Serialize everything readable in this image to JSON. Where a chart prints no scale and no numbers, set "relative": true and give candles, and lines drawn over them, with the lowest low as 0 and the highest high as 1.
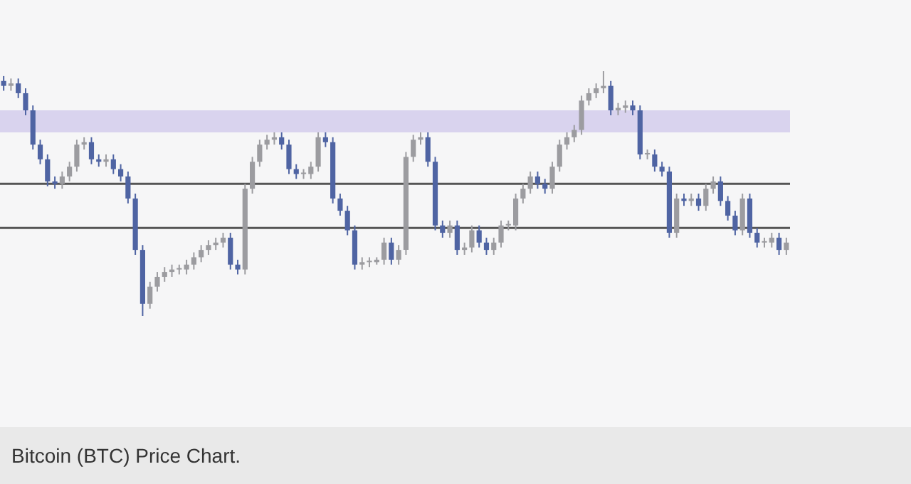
{
  "chart_data": {
    "type": "candlestick",
    "relative": true,
    "categories": [
      null,
      null,
      null,
      null,
      null,
      null,
      null,
      null,
      null,
      null,
      null,
      null,
      null,
      null,
      null,
      null,
      null,
      null,
      null,
      null,
      null,
      null,
      null,
      null,
      null,
      null,
      null,
      null,
      null,
      null,
      null,
      null,
      null,
      null,
      null,
      null,
      null,
      null,
      null,
      null,
      null,
      null,
      null,
      null,
      null,
      null,
      null,
      null,
      null,
      null,
      null,
      null,
      null,
      null,
      null,
      null,
      null,
      null,
      null,
      null,
      null,
      null,
      null,
      null,
      null,
      null,
      null,
      null,
      null,
      null,
      null,
      null,
      null,
      null,
      null,
      null,
      null,
      null,
      null,
      null,
      null,
      null,
      null,
      null,
      null,
      null,
      null,
      null,
      null,
      null,
      null,
      null,
      null,
      null,
      null,
      null,
      null,
      null,
      null,
      null,
      null,
      null,
      null,
      null,
      null,
      null,
      null,
      null
    ],
    "ohlc": [
      [
        0.96,
        0.98,
        0.92,
        0.94
      ],
      [
        0.94,
        0.97,
        0.92,
        0.95
      ],
      [
        0.95,
        0.97,
        0.89,
        0.91
      ],
      [
        0.91,
        0.93,
        0.82,
        0.84
      ],
      [
        0.84,
        0.86,
        0.68,
        0.7
      ],
      [
        0.7,
        0.72,
        0.62,
        0.64
      ],
      [
        0.64,
        0.66,
        0.53,
        0.55
      ],
      [
        0.55,
        0.57,
        0.52,
        0.54
      ],
      [
        0.54,
        0.59,
        0.52,
        0.57
      ],
      [
        0.57,
        0.63,
        0.55,
        0.61
      ],
      [
        0.61,
        0.72,
        0.59,
        0.7
      ],
      [
        0.7,
        0.73,
        0.68,
        0.71
      ],
      [
        0.71,
        0.73,
        0.62,
        0.64
      ],
      [
        0.64,
        0.66,
        0.61,
        0.63
      ],
      [
        0.63,
        0.66,
        0.61,
        0.64
      ],
      [
        0.64,
        0.66,
        0.58,
        0.6
      ],
      [
        0.6,
        0.62,
        0.55,
        0.57
      ],
      [
        0.57,
        0.59,
        0.46,
        0.48
      ],
      [
        0.48,
        0.5,
        0.25,
        0.27
      ],
      [
        0.27,
        0.29,
        0,
        0.05
      ],
      [
        0.05,
        0.14,
        0.03,
        0.12
      ],
      [
        0.12,
        0.18,
        0.1,
        0.16
      ],
      [
        0.16,
        0.2,
        0.14,
        0.18
      ],
      [
        0.18,
        0.21,
        0.16,
        0.19
      ],
      [
        0.19,
        0.21,
        0.17,
        0.19
      ],
      [
        0.19,
        0.23,
        0.17,
        0.21
      ],
      [
        0.21,
        0.26,
        0.19,
        0.24
      ],
      [
        0.24,
        0.29,
        0.22,
        0.27
      ],
      [
        0.27,
        0.31,
        0.25,
        0.29
      ],
      [
        0.29,
        0.32,
        0.27,
        0.3
      ],
      [
        0.3,
        0.34,
        0.28,
        0.32
      ],
      [
        0.32,
        0.34,
        0.19,
        0.21
      ],
      [
        0.21,
        0.23,
        0.17,
        0.19
      ],
      [
        0.19,
        0.54,
        0.17,
        0.52
      ],
      [
        0.52,
        0.65,
        0.5,
        0.63
      ],
      [
        0.63,
        0.72,
        0.61,
        0.7
      ],
      [
        0.7,
        0.74,
        0.68,
        0.72
      ],
      [
        0.72,
        0.75,
        0.7,
        0.73
      ],
      [
        0.73,
        0.75,
        0.68,
        0.7
      ],
      [
        0.7,
        0.72,
        0.58,
        0.6
      ],
      [
        0.6,
        0.62,
        0.56,
        0.58
      ],
      [
        0.58,
        0.6,
        0.56,
        0.58
      ],
      [
        0.58,
        0.63,
        0.56,
        0.61
      ],
      [
        0.61,
        0.75,
        0.59,
        0.73
      ],
      [
        0.73,
        0.75,
        0.69,
        0.71
      ],
      [
        0.71,
        0.73,
        0.46,
        0.48
      ],
      [
        0.48,
        0.5,
        0.41,
        0.43
      ],
      [
        0.43,
        0.45,
        0.33,
        0.35
      ],
      [
        0.35,
        0.37,
        0.19,
        0.21
      ],
      [
        0.21,
        0.24,
        0.19,
        0.22
      ],
      [
        0.22,
        0.24,
        0.2,
        0.22
      ],
      [
        0.22,
        0.24,
        0.21,
        0.23
      ],
      [
        0.23,
        0.32,
        0.21,
        0.3
      ],
      [
        0.3,
        0.32,
        0.21,
        0.23
      ],
      [
        0.23,
        0.29,
        0.21,
        0.27
      ],
      [
        0.27,
        0.67,
        0.25,
        0.65
      ],
      [
        0.65,
        0.74,
        0.63,
        0.72
      ],
      [
        0.72,
        0.75,
        0.7,
        0.73
      ],
      [
        0.73,
        0.75,
        0.61,
        0.63
      ],
      [
        0.63,
        0.65,
        0.35,
        0.37
      ],
      [
        0.37,
        0.39,
        0.32,
        0.34
      ],
      [
        0.34,
        0.39,
        0.32,
        0.37
      ],
      [
        0.37,
        0.39,
        0.25,
        0.27
      ],
      [
        0.27,
        0.3,
        0.25,
        0.28
      ],
      [
        0.28,
        0.37,
        0.26,
        0.35
      ],
      [
        0.35,
        0.37,
        0.28,
        0.3
      ],
      [
        0.3,
        0.32,
        0.25,
        0.27
      ],
      [
        0.27,
        0.32,
        0.25,
        0.3
      ],
      [
        0.3,
        0.39,
        0.28,
        0.37
      ],
      [
        0.37,
        0.39,
        0.35,
        0.37
      ],
      [
        0.37,
        0.5,
        0.35,
        0.48
      ],
      [
        0.48,
        0.54,
        0.46,
        0.52
      ],
      [
        0.52,
        0.59,
        0.5,
        0.57
      ],
      [
        0.57,
        0.59,
        0.52,
        0.54
      ],
      [
        0.54,
        0.56,
        0.5,
        0.52
      ],
      [
        0.52,
        0.63,
        0.5,
        0.61
      ],
      [
        0.61,
        0.72,
        0.59,
        0.7
      ],
      [
        0.7,
        0.75,
        0.68,
        0.73
      ],
      [
        0.73,
        0.78,
        0.71,
        0.76
      ],
      [
        0.76,
        0.9,
        0.74,
        0.88
      ],
      [
        0.88,
        0.93,
        0.86,
        0.91
      ],
      [
        0.91,
        0.95,
        0.89,
        0.93
      ],
      [
        0.93,
        1,
        0.91,
        0.94
      ],
      [
        0.94,
        0.96,
        0.82,
        0.84
      ],
      [
        0.84,
        0.87,
        0.82,
        0.85
      ],
      [
        0.85,
        0.88,
        0.83,
        0.86
      ],
      [
        0.86,
        0.88,
        0.82,
        0.84
      ],
      [
        0.84,
        0.86,
        0.64,
        0.66
      ],
      [
        0.66,
        0.68,
        0.64,
        0.66
      ],
      [
        0.66,
        0.68,
        0.59,
        0.61
      ],
      [
        0.61,
        0.63,
        0.57,
        0.59
      ],
      [
        0.59,
        0.61,
        0.32,
        0.34
      ],
      [
        0.34,
        0.5,
        0.32,
        0.48
      ],
      [
        0.48,
        0.5,
        0.45,
        0.47
      ],
      [
        0.47,
        0.5,
        0.45,
        0.48
      ],
      [
        0.48,
        0.5,
        0.43,
        0.45
      ],
      [
        0.45,
        0.54,
        0.43,
        0.52
      ],
      [
        0.52,
        0.57,
        0.5,
        0.55
      ],
      [
        0.55,
        0.57,
        0.45,
        0.47
      ],
      [
        0.47,
        0.49,
        0.39,
        0.41
      ],
      [
        0.41,
        0.43,
        0.33,
        0.35
      ],
      [
        0.35,
        0.5,
        0.33,
        0.48
      ],
      [
        0.48,
        0.5,
        0.32,
        0.34
      ],
      [
        0.34,
        0.36,
        0.28,
        0.3
      ],
      [
        0.3,
        0.32,
        0.28,
        0.3
      ],
      [
        0.3,
        0.34,
        0.28,
        0.32
      ],
      [
        0.32,
        0.34,
        0.25,
        0.27
      ],
      [
        0.27,
        0.32,
        0.25,
        0.3
      ]
    ],
    "bands": [
      {
        "axis": "y",
        "from": 0.75,
        "to": 0.84,
        "color": "#d9d3ee"
      }
    ],
    "ref_lines": [
      {
        "axis": "y",
        "value": 0.54,
        "color": "#555555"
      },
      {
        "axis": "y",
        "value": 0.36,
        "color": "#555555"
      }
    ],
    "tick_labels": false,
    "grid": false,
    "legend": false,
    "annotations": [
      "Bitcoin (BTC) Price Chart."
    ]
  }
}
